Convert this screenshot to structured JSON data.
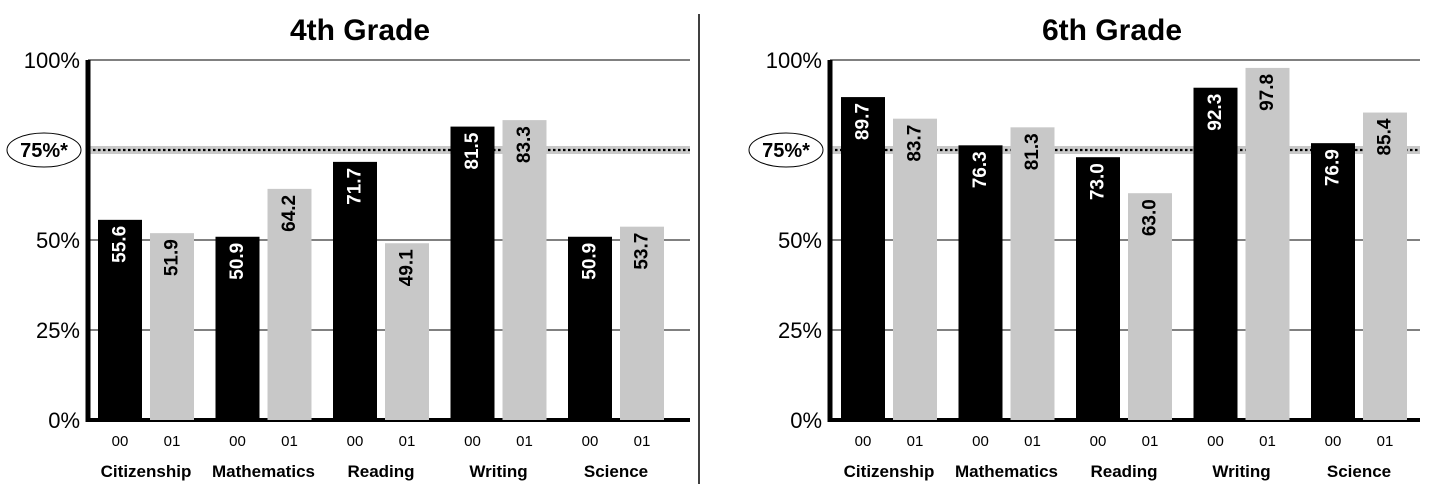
{
  "colors": {
    "year00": "#000000",
    "year01": "#c8c8c8",
    "target_band": "#c8c8c8"
  },
  "target_label": "75%*",
  "chart_data": [
    {
      "type": "bar",
      "title": "4th Grade",
      "categories": [
        "Citizenship",
        "Mathematics",
        "Reading",
        "Writing",
        "Science"
      ],
      "sub_labels": [
        "00",
        "01"
      ],
      "series": [
        {
          "values": [
            55.6,
            50.9,
            71.7,
            81.5,
            50.9
          ]
        },
        {
          "values": [
            51.9,
            64.2,
            49.1,
            83.3,
            53.7
          ]
        }
      ],
      "value_labels": [
        [
          "55.6",
          "50.9",
          "71.7",
          "81.5",
          "50.9"
        ],
        [
          "51.9",
          "64.2",
          "49.1",
          "83.3",
          "53.7"
        ]
      ],
      "yticks": [
        "0%",
        "25%",
        "50%",
        "100%"
      ],
      "ylim": [
        0,
        100
      ],
      "target": 75,
      "grid": true
    },
    {
      "type": "bar",
      "title": "6th Grade",
      "categories": [
        "Citizenship",
        "Mathematics",
        "Reading",
        "Writing",
        "Science"
      ],
      "sub_labels": [
        "00",
        "01"
      ],
      "series": [
        {
          "values": [
            89.7,
            76.3,
            73.0,
            92.3,
            76.9
          ]
        },
        {
          "values": [
            83.7,
            81.3,
            63.0,
            97.8,
            85.4
          ]
        }
      ],
      "value_labels": [
        [
          "89.7",
          "76.3",
          "73.0",
          "92.3",
          "76.9"
        ],
        [
          "83.7",
          "81.3",
          "63.0",
          "97.8",
          "85.4"
        ]
      ],
      "yticks": [
        "0%",
        "25%",
        "50%",
        "100%"
      ],
      "ylim": [
        0,
        100
      ],
      "target": 75,
      "grid": true
    }
  ]
}
